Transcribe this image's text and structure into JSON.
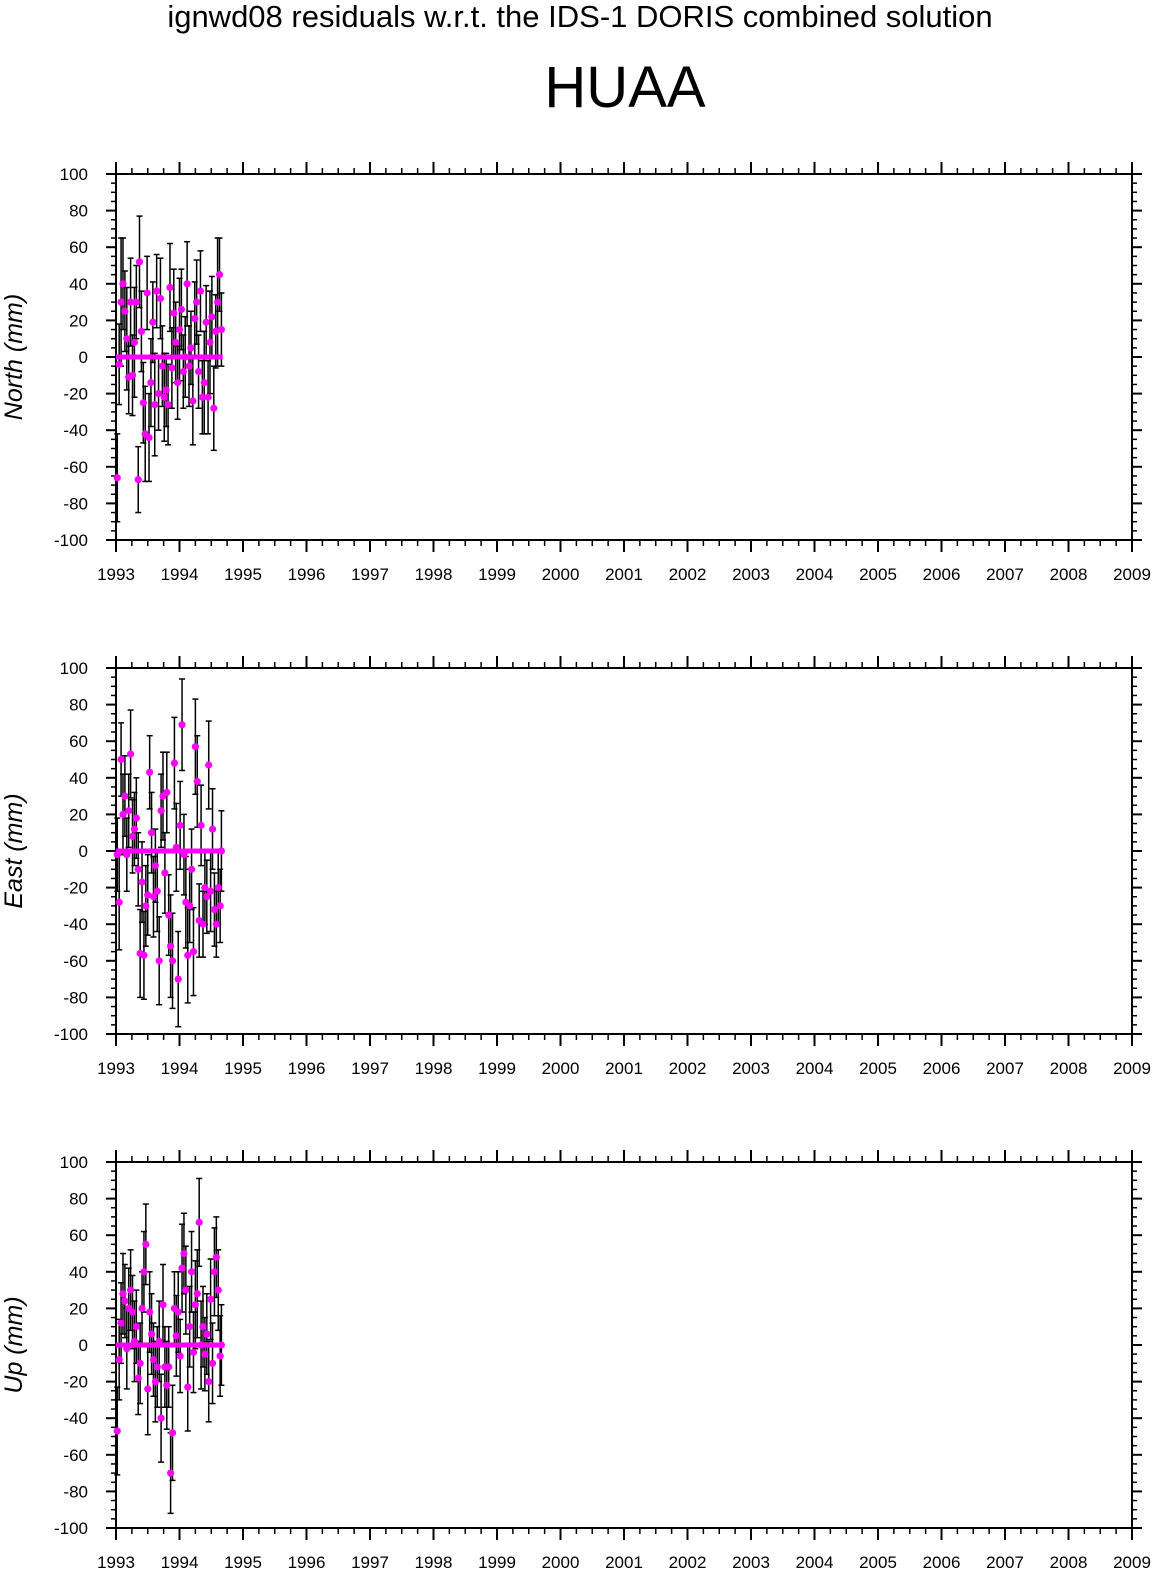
{
  "title": "ignwd08 residuals w.r.t. the IDS-1 DORIS combined solution",
  "station": "HUAA",
  "colors": {
    "points": "#ff00ff",
    "errorbars": "#000000",
    "axes": "#000000"
  },
  "chart_data": [
    {
      "type": "scatter",
      "panel": "north",
      "ylabel": "North (mm)",
      "ylim": [
        -100,
        100
      ],
      "xlim": [
        1993,
        2009
      ],
      "yticks": [
        "100",
        "80",
        "60",
        "40",
        "20",
        "0",
        "-20",
        "-40",
        "-60",
        "-80",
        "-100"
      ],
      "xticks": [
        "1993",
        "1994",
        "1995",
        "1996",
        "1997",
        "1998",
        "1999",
        "2000",
        "2001",
        "2002",
        "2003",
        "2004",
        "2005",
        "2006",
        "2007",
        "2008",
        "2009"
      ],
      "zero_line": [
        1993.0,
        1994.68
      ],
      "points": [
        [
          1993.02,
          -66,
          24
        ],
        [
          1993.05,
          -4,
          22
        ],
        [
          1993.08,
          30,
          35
        ],
        [
          1993.11,
          40,
          25
        ],
        [
          1993.14,
          25,
          22
        ],
        [
          1993.17,
          10,
          28
        ],
        [
          1993.2,
          -11,
          20
        ],
        [
          1993.23,
          30,
          24
        ],
        [
          1993.26,
          -10,
          22
        ],
        [
          1993.29,
          8,
          30
        ],
        [
          1993.32,
          30,
          20
        ],
        [
          1993.35,
          -67,
          18
        ],
        [
          1993.37,
          52,
          25
        ],
        [
          1993.4,
          14,
          22
        ],
        [
          1993.43,
          -25,
          22
        ],
        [
          1993.46,
          -42,
          26
        ],
        [
          1993.49,
          35,
          20
        ],
        [
          1993.52,
          -44,
          24
        ],
        [
          1993.55,
          -14,
          24
        ],
        [
          1993.58,
          19,
          22
        ],
        [
          1993.61,
          -26,
          28
        ],
        [
          1993.64,
          36,
          20
        ],
        [
          1993.67,
          -20,
          20
        ],
        [
          1993.7,
          32,
          22
        ],
        [
          1993.73,
          -5,
          22
        ],
        [
          1993.76,
          -22,
          24
        ],
        [
          1993.79,
          -18,
          20
        ],
        [
          1993.82,
          -26,
          22
        ],
        [
          1993.85,
          38,
          24
        ],
        [
          1993.88,
          -6,
          22
        ],
        [
          1993.91,
          24,
          24
        ],
        [
          1993.94,
          8,
          22
        ],
        [
          1993.97,
          -14,
          20
        ],
        [
          1994.0,
          15,
          28
        ],
        [
          1994.03,
          26,
          22
        ],
        [
          1994.06,
          -8,
          20
        ],
        [
          1994.09,
          0,
          22
        ],
        [
          1994.12,
          40,
          23
        ],
        [
          1994.15,
          -5,
          22
        ],
        [
          1994.18,
          5,
          20
        ],
        [
          1994.21,
          -24,
          24
        ],
        [
          1994.24,
          21,
          20
        ],
        [
          1994.27,
          30,
          23
        ],
        [
          1994.3,
          -8,
          20
        ],
        [
          1994.33,
          36,
          22
        ],
        [
          1994.36,
          -22,
          20
        ],
        [
          1994.39,
          -14,
          28
        ],
        [
          1994.42,
          19,
          20
        ],
        [
          1994.45,
          -22,
          20
        ],
        [
          1994.48,
          8,
          28
        ],
        [
          1994.51,
          22,
          22
        ],
        [
          1994.54,
          -28,
          23
        ],
        [
          1994.57,
          14,
          20
        ],
        [
          1994.6,
          30,
          35
        ],
        [
          1994.63,
          45,
          20
        ],
        [
          1994.66,
          15,
          20
        ]
      ]
    },
    {
      "type": "scatter",
      "panel": "east",
      "ylabel": "East (mm)",
      "ylim": [
        -100,
        100
      ],
      "xlim": [
        1993,
        2009
      ],
      "yticks": [
        "100",
        "80",
        "60",
        "40",
        "20",
        "0",
        "-20",
        "-40",
        "-60",
        "-80",
        "-100"
      ],
      "xticks": [
        "1993",
        "1994",
        "1995",
        "1996",
        "1997",
        "1998",
        "1999",
        "2000",
        "2001",
        "2002",
        "2003",
        "2004",
        "2005",
        "2006",
        "2007",
        "2008",
        "2009"
      ],
      "zero_line": [
        1993.0,
        1994.68
      ],
      "points": [
        [
          1993.02,
          -2,
          20
        ],
        [
          1993.05,
          -28,
          26
        ],
        [
          1993.08,
          50,
          20
        ],
        [
          1993.11,
          20,
          22
        ],
        [
          1993.14,
          30,
          22
        ],
        [
          1993.17,
          -2,
          20
        ],
        [
          1993.2,
          22,
          20
        ],
        [
          1993.23,
          53,
          24
        ],
        [
          1993.26,
          8,
          20
        ],
        [
          1993.29,
          12,
          20
        ],
        [
          1993.32,
          18,
          22
        ],
        [
          1993.35,
          -10,
          20
        ],
        [
          1993.38,
          -56,
          24
        ],
        [
          1993.41,
          -17,
          22
        ],
        [
          1993.44,
          -57,
          24
        ],
        [
          1993.47,
          -30,
          22
        ],
        [
          1993.5,
          -24,
          22
        ],
        [
          1993.53,
          43,
          20
        ],
        [
          1993.56,
          10,
          22
        ],
        [
          1993.59,
          -25,
          22
        ],
        [
          1993.62,
          -8,
          20
        ],
        [
          1993.65,
          -22,
          22
        ],
        [
          1993.68,
          -60,
          24
        ],
        [
          1993.71,
          22,
          20
        ],
        [
          1993.74,
          30,
          24
        ],
        [
          1993.77,
          -12,
          22
        ],
        [
          1993.8,
          32,
          22
        ],
        [
          1993.83,
          -35,
          22
        ],
        [
          1993.86,
          -52,
          28
        ],
        [
          1993.89,
          -60,
          26
        ],
        [
          1993.92,
          48,
          25
        ],
        [
          1993.95,
          2,
          24
        ],
        [
          1993.98,
          -70,
          26
        ],
        [
          1994.01,
          14,
          24
        ],
        [
          1994.04,
          69,
          25
        ],
        [
          1994.07,
          -2,
          22
        ],
        [
          1994.1,
          -28,
          25
        ],
        [
          1994.13,
          -57,
          26
        ],
        [
          1994.16,
          -30,
          20
        ],
        [
          1994.19,
          -10,
          22
        ],
        [
          1994.22,
          -55,
          24
        ],
        [
          1994.25,
          57,
          26
        ],
        [
          1994.28,
          38,
          25
        ],
        [
          1994.31,
          -38,
          20
        ],
        [
          1994.34,
          14,
          22
        ],
        [
          1994.37,
          -40,
          18
        ],
        [
          1994.4,
          -20,
          20
        ],
        [
          1994.43,
          -25,
          20
        ],
        [
          1994.46,
          47,
          24
        ],
        [
          1994.49,
          -22,
          22
        ],
        [
          1994.52,
          12,
          22
        ],
        [
          1994.55,
          -32,
          20
        ],
        [
          1994.58,
          -40,
          18
        ],
        [
          1994.61,
          -20,
          20
        ],
        [
          1994.64,
          -30,
          20
        ],
        [
          1994.66,
          0,
          22
        ]
      ]
    },
    {
      "type": "scatter",
      "panel": "up",
      "ylabel": "Up (mm)",
      "ylim": [
        -100,
        100
      ],
      "xlim": [
        1993,
        2009
      ],
      "yticks": [
        "100",
        "80",
        "60",
        "40",
        "20",
        "0",
        "-20",
        "-40",
        "-60",
        "-80",
        "-100"
      ],
      "xticks": [
        "1993",
        "1994",
        "1995",
        "1996",
        "1997",
        "1998",
        "1999",
        "2000",
        "2001",
        "2002",
        "2003",
        "2004",
        "2005",
        "2006",
        "2007",
        "2008",
        "2009"
      ],
      "zero_line": [
        1993.0,
        1994.68
      ],
      "points": [
        [
          1993.02,
          -47,
          24
        ],
        [
          1993.05,
          -8,
          22
        ],
        [
          1993.08,
          12,
          22
        ],
        [
          1993.11,
          28,
          22
        ],
        [
          1993.14,
          24,
          20
        ],
        [
          1993.17,
          -2,
          22
        ],
        [
          1993.2,
          20,
          22
        ],
        [
          1993.23,
          30,
          22
        ],
        [
          1993.26,
          18,
          20
        ],
        [
          1993.29,
          2,
          22
        ],
        [
          1993.32,
          10,
          20
        ],
        [
          1993.35,
          -18,
          20
        ],
        [
          1993.38,
          -10,
          22
        ],
        [
          1993.41,
          20,
          20
        ],
        [
          1993.44,
          40,
          22
        ],
        [
          1993.47,
          55,
          22
        ],
        [
          1993.5,
          -24,
          25
        ],
        [
          1993.53,
          18,
          22
        ],
        [
          1993.56,
          6,
          22
        ],
        [
          1993.59,
          -8,
          20
        ],
        [
          1993.62,
          -20,
          22
        ],
        [
          1993.65,
          -12,
          22
        ],
        [
          1993.68,
          2,
          22
        ],
        [
          1993.71,
          -40,
          24
        ],
        [
          1993.74,
          22,
          22
        ],
        [
          1993.77,
          -12,
          22
        ],
        [
          1993.8,
          -22,
          24
        ],
        [
          1993.83,
          -12,
          22
        ],
        [
          1993.86,
          -70,
          22
        ],
        [
          1993.89,
          -48,
          26
        ],
        [
          1993.92,
          20,
          20
        ],
        [
          1993.95,
          5,
          22
        ],
        [
          1993.98,
          18,
          22
        ],
        [
          1994.01,
          -6,
          20
        ],
        [
          1994.04,
          42,
          24
        ],
        [
          1994.07,
          50,
          22
        ],
        [
          1994.1,
          30,
          24
        ],
        [
          1994.13,
          -23,
          24
        ],
        [
          1994.16,
          10,
          22
        ],
        [
          1994.19,
          40,
          22
        ],
        [
          1994.22,
          -4,
          22
        ],
        [
          1994.25,
          22,
          24
        ],
        [
          1994.28,
          28,
          24
        ],
        [
          1994.31,
          67,
          24
        ],
        [
          1994.34,
          0,
          24
        ],
        [
          1994.37,
          10,
          22
        ],
        [
          1994.4,
          -5,
          20
        ],
        [
          1994.43,
          6,
          22
        ],
        [
          1994.46,
          -20,
          22
        ],
        [
          1994.49,
          25,
          22
        ],
        [
          1994.52,
          -10,
          22
        ],
        [
          1994.55,
          40,
          24
        ],
        [
          1994.58,
          48,
          22
        ],
        [
          1994.61,
          30,
          22
        ],
        [
          1994.64,
          -6,
          22
        ],
        [
          1994.66,
          0,
          22
        ]
      ]
    }
  ]
}
